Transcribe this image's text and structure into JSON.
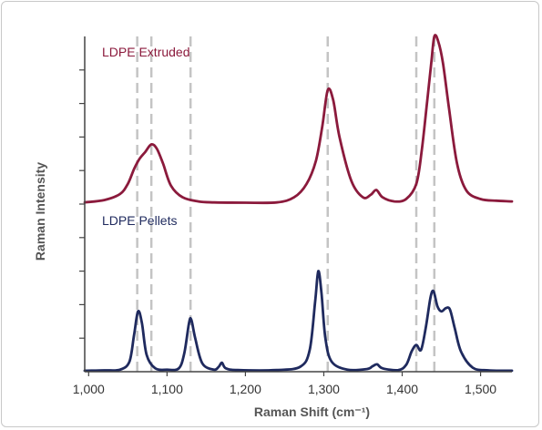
{
  "chart_data": {
    "type": "line",
    "xlabel": "Raman Shift (cm⁻¹)",
    "ylabel": "Raman Intensity",
    "xlim": [
      995,
      1540
    ],
    "ylim": [
      0,
      10
    ],
    "x_ticks": [
      1000,
      1100,
      1200,
      1300,
      1400,
      1500
    ],
    "x_tick_labels": [
      "1,000",
      "1,100",
      "1,200",
      "1,300",
      "1,400",
      "1,500"
    ],
    "y_tick_values": [
      1,
      2,
      3,
      4,
      5,
      6,
      7,
      8,
      9
    ],
    "reference_lines_x": [
      1062,
      1080,
      1130,
      1305,
      1418,
      1441
    ],
    "series": [
      {
        "name": "LDPE Extruded",
        "color": "#8b1a3c",
        "x": [
          995,
          1020,
          1040,
          1050,
          1058,
          1065,
          1072,
          1080,
          1087,
          1095,
          1105,
          1120,
          1140,
          1160,
          1200,
          1240,
          1262,
          1278,
          1290,
          1298,
          1305,
          1312,
          1320,
          1335,
          1350,
          1360,
          1367,
          1375,
          1390,
          1405,
          1418,
          1425,
          1432,
          1437,
          1441,
          1446,
          1452,
          1460,
          1470,
          1482,
          1500,
          1520,
          1540
        ],
        "y": [
          5.05,
          5.12,
          5.3,
          5.6,
          6.05,
          6.35,
          6.55,
          6.78,
          6.65,
          6.2,
          5.55,
          5.2,
          5.08,
          5.05,
          5.04,
          5.05,
          5.2,
          5.6,
          6.3,
          7.3,
          8.4,
          8.1,
          7.0,
          5.7,
          5.2,
          5.28,
          5.42,
          5.2,
          5.08,
          5.15,
          5.6,
          6.6,
          8.1,
          9.2,
          10.0,
          9.85,
          9.2,
          7.8,
          6.2,
          5.4,
          5.15,
          5.1,
          5.08
        ]
      },
      {
        "name": "LDPE Pellets",
        "color": "#1f2a5e",
        "x": [
          995,
          1020,
          1040,
          1052,
          1058,
          1063,
          1068,
          1074,
          1085,
          1100,
          1115,
          1122,
          1128,
          1131,
          1136,
          1145,
          1160,
          1166,
          1170,
          1175,
          1190,
          1240,
          1270,
          1282,
          1289,
          1293,
          1297,
          1302,
          1310,
          1330,
          1355,
          1362,
          1368,
          1375,
          1395,
          1405,
          1412,
          1418,
          1424,
          1430,
          1436,
          1440,
          1445,
          1450,
          1456,
          1461,
          1467,
          1475,
          1490,
          1510,
          1540
        ],
        "y": [
          0.03,
          0.04,
          0.06,
          0.3,
          1.1,
          1.8,
          1.45,
          0.5,
          0.1,
          0.06,
          0.1,
          0.55,
          1.45,
          1.55,
          1.0,
          0.25,
          0.06,
          0.15,
          0.27,
          0.1,
          0.05,
          0.05,
          0.15,
          0.65,
          2.1,
          3.0,
          2.35,
          1.0,
          0.3,
          0.06,
          0.08,
          0.16,
          0.22,
          0.1,
          0.05,
          0.2,
          0.6,
          0.8,
          0.65,
          1.3,
          2.2,
          2.4,
          1.95,
          1.8,
          1.9,
          1.85,
          1.3,
          0.6,
          0.12,
          0.04,
          0.03
        ]
      }
    ]
  }
}
